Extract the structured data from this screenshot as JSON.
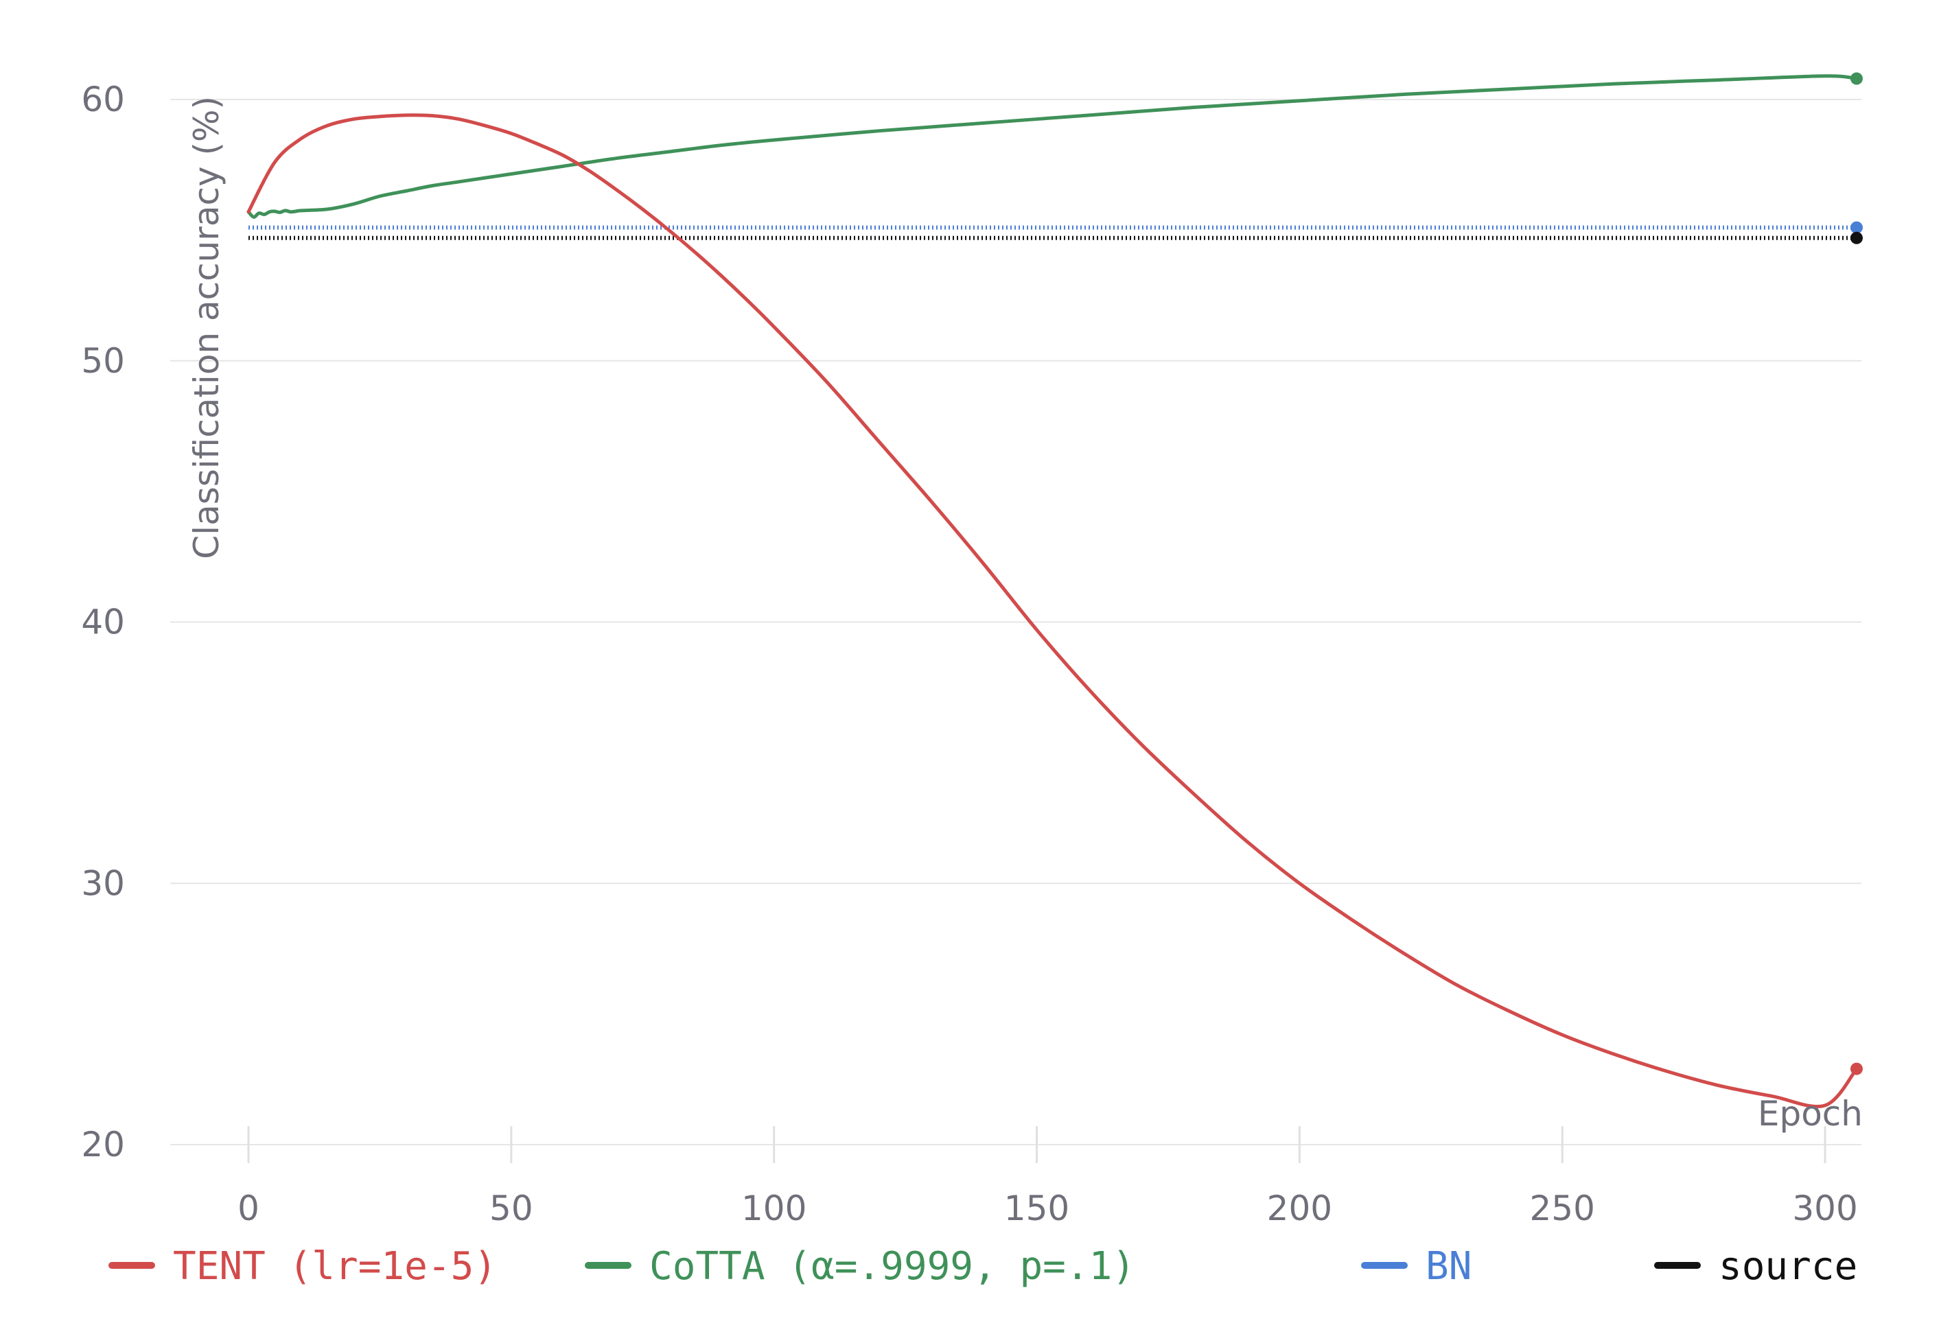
{
  "chart_data": {
    "type": "line",
    "title": "",
    "xlabel": "Epoch",
    "ylabel": "Classification accuracy (%)",
    "xlim": [
      -15,
      307
    ],
    "ylim": [
      20,
      62
    ],
    "x_ticks": [
      0,
      50,
      100,
      150,
      200,
      250,
      300
    ],
    "y_ticks": [
      20,
      30,
      40,
      50,
      60
    ],
    "grid": "horizontal",
    "legend_position": "bottom",
    "series": [
      {
        "name": "TENT (lr=1e-5)",
        "color": "#d24b4b",
        "style": "solid",
        "x": [
          0,
          5,
          10,
          15,
          20,
          25,
          30,
          35,
          40,
          45,
          50,
          55,
          60,
          65,
          70,
          75,
          80,
          85,
          90,
          95,
          100,
          110,
          120,
          130,
          140,
          150,
          160,
          170,
          180,
          190,
          200,
          210,
          220,
          230,
          240,
          250,
          260,
          270,
          280,
          290,
          300,
          306
        ],
        "values": [
          55.7,
          57.6,
          58.5,
          59.0,
          59.25,
          59.35,
          59.4,
          59.38,
          59.25,
          59.0,
          58.7,
          58.3,
          57.85,
          57.25,
          56.55,
          55.8,
          55.0,
          54.15,
          53.25,
          52.3,
          51.3,
          49.2,
          46.9,
          44.6,
          42.2,
          39.7,
          37.4,
          35.3,
          33.4,
          31.6,
          30.0,
          28.6,
          27.3,
          26.1,
          25.1,
          24.2,
          23.45,
          22.8,
          22.25,
          21.85,
          21.5,
          22.9
        ]
      },
      {
        "name": "CoTTA (α=.9999, p=.1)",
        "color": "#3f9159",
        "style": "solid",
        "x": [
          0,
          1,
          2,
          3,
          4,
          5,
          6,
          7,
          8,
          9,
          10,
          15,
          20,
          25,
          30,
          35,
          40,
          50,
          60,
          70,
          80,
          90,
          100,
          120,
          140,
          160,
          180,
          200,
          220,
          240,
          260,
          280,
          300,
          306
        ],
        "values": [
          55.7,
          55.5,
          55.65,
          55.6,
          55.7,
          55.72,
          55.68,
          55.75,
          55.7,
          55.72,
          55.75,
          55.8,
          56.0,
          56.3,
          56.5,
          56.7,
          56.85,
          57.15,
          57.45,
          57.75,
          58.0,
          58.25,
          58.45,
          58.8,
          59.1,
          59.4,
          59.7,
          59.95,
          60.2,
          60.4,
          60.6,
          60.75,
          60.9,
          60.8
        ]
      },
      {
        "name": "BN",
        "color": "#4a7fd6",
        "style": "dotted",
        "x": [
          0,
          306
        ],
        "values": [
          55.1,
          55.1
        ]
      },
      {
        "name": "source",
        "color": "#111111",
        "style": "dotted",
        "x": [
          0,
          306
        ],
        "values": [
          54.7,
          54.7
        ]
      }
    ]
  }
}
